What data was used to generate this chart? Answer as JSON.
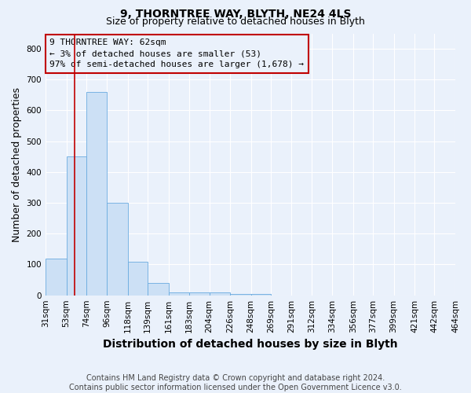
{
  "title1": "9, THORNTREE WAY, BLYTH, NE24 4LS",
  "title2": "Size of property relative to detached houses in Blyth",
  "xlabel": "Distribution of detached houses by size in Blyth",
  "ylabel": "Number of detached properties",
  "footnote": "Contains HM Land Registry data © Crown copyright and database right 2024.\nContains public sector information licensed under the Open Government Licence v3.0.",
  "bin_edges": [
    31,
    53,
    74,
    96,
    118,
    139,
    161,
    183,
    204,
    226,
    248,
    269,
    291,
    312,
    334,
    356,
    377,
    399,
    421,
    442,
    464
  ],
  "bar_heights": [
    120,
    450,
    660,
    300,
    110,
    40,
    10,
    10,
    10,
    5,
    5,
    0,
    0,
    0,
    0,
    0,
    0,
    0,
    0,
    0
  ],
  "bar_color": "#cce0f5",
  "bar_edge_color": "#6aabe0",
  "vline_x": 62,
  "vline_color": "#c00000",
  "ylim": [
    0,
    850
  ],
  "yticks": [
    0,
    100,
    200,
    300,
    400,
    500,
    600,
    700,
    800
  ],
  "annotation_line1": "9 THORNTREE WAY: 62sqm",
  "annotation_line2": "← 3% of detached houses are smaller (53)",
  "annotation_line3": "97% of semi-detached houses are larger (1,678) →",
  "annotation_box_color": "#c00000",
  "bg_color": "#eaf1fb",
  "grid_color": "#ffffff",
  "title_fontsize": 10,
  "subtitle_fontsize": 9,
  "axis_label_fontsize": 9,
  "tick_fontsize": 7.5,
  "annotation_fontsize": 8,
  "footnote_fontsize": 7
}
